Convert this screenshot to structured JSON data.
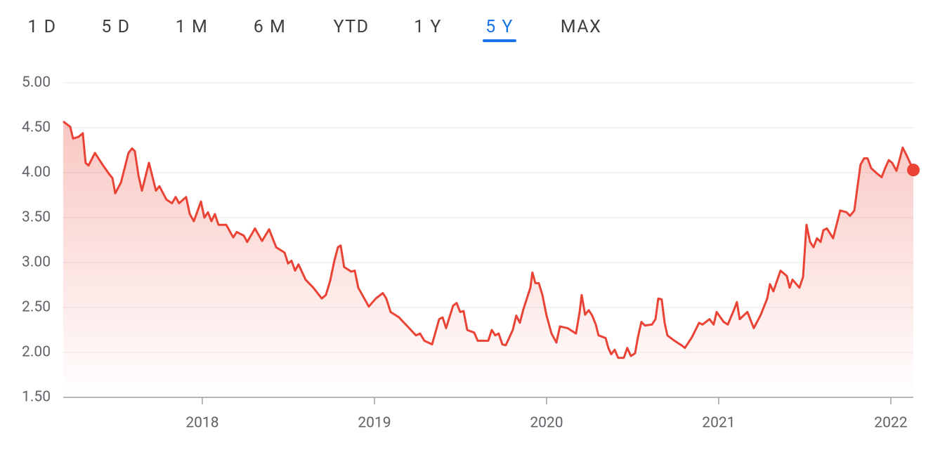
{
  "tabs": [
    "1 D",
    "5 D",
    "1 M",
    "6 M",
    "YTD",
    "1 Y",
    "5 Y",
    "MAX"
  ],
  "selected_tab": 6,
  "chart_data": {
    "type": "line",
    "color": "#ea4335",
    "grid": true,
    "ylim": [
      1.5,
      5.0
    ],
    "yticks": [
      {
        "value": 1.5,
        "label": "1.50"
      },
      {
        "value": 2,
        "label": "2.00"
      },
      {
        "value": 2.5,
        "label": "2.50"
      },
      {
        "value": 3,
        "label": "3.00"
      },
      {
        "value": 3.5,
        "label": "3.50"
      },
      {
        "value": 4,
        "label": "4.00"
      },
      {
        "value": 4.5,
        "label": "4.50"
      },
      {
        "value": 5,
        "label": "5.00"
      }
    ],
    "xlim": [
      2017.192,
      2022.131
    ],
    "xticks": [
      2018,
      2019,
      2020,
      2021,
      2022
    ],
    "x": [
      2017.192,
      2017.233,
      2017.249,
      2017.282,
      2017.306,
      2017.322,
      2017.339,
      2017.376,
      2017.42,
      2017.461,
      2017.478,
      2017.494,
      2017.527,
      2017.571,
      2017.592,
      2017.608,
      2017.629,
      2017.649,
      2017.69,
      2017.731,
      2017.751,
      2017.792,
      2017.824,
      2017.845,
      2017.865,
      2017.906,
      2017.927,
      2017.951,
      2017.992,
      2018.012,
      2018.033,
      2018.053,
      2018.073,
      2018.094,
      2018.139,
      2018.18,
      2018.2,
      2018.241,
      2018.261,
      2018.306,
      2018.347,
      2018.388,
      2018.429,
      2018.478,
      2018.498,
      2018.518,
      2018.539,
      2018.559,
      2018.6,
      2018.645,
      2018.694,
      2018.718,
      2018.743,
      2018.767,
      2018.788,
      2018.804,
      2018.824,
      2018.865,
      2018.886,
      2018.906,
      2018.947,
      2018.967,
      2019.008,
      2019.049,
      2019.069,
      2019.094,
      2019.143,
      2019.167,
      2019.192,
      2019.241,
      2019.265,
      2019.29,
      2019.335,
      2019.376,
      2019.396,
      2019.416,
      2019.457,
      2019.478,
      2019.498,
      2019.518,
      2019.539,
      2019.58,
      2019.6,
      2019.661,
      2019.682,
      2019.702,
      2019.722,
      2019.743,
      2019.763,
      2019.804,
      2019.824,
      2019.845,
      2019.865,
      2019.906,
      2019.918,
      2019.935,
      2019.955,
      2019.976,
      2020.0,
      2020.029,
      2020.057,
      2020.078,
      2020.122,
      2020.171,
      2020.192,
      2020.204,
      2020.224,
      2020.245,
      2020.265,
      2020.286,
      2020.302,
      2020.343,
      2020.359,
      2020.376,
      2020.396,
      2020.416,
      2020.449,
      2020.469,
      2020.49,
      2020.514,
      2020.531,
      2020.551,
      2020.571,
      2020.612,
      2020.633,
      2020.649,
      2020.669,
      2020.686,
      2020.702,
      2020.743,
      2020.784,
      2020.804,
      2020.845,
      2020.886,
      2020.906,
      2020.947,
      2020.971,
      2020.988,
      2021.029,
      2021.053,
      2021.09,
      2021.106,
      2021.122,
      2021.167,
      2021.204,
      2021.245,
      2021.282,
      2021.298,
      2021.318,
      2021.359,
      2021.396,
      2021.412,
      2021.429,
      2021.469,
      2021.49,
      2021.51,
      2021.531,
      2021.551,
      2021.571,
      2021.592,
      2021.608,
      2021.629,
      2021.665,
      2021.706,
      2021.743,
      2021.763,
      2021.788,
      2021.804,
      2021.824,
      2021.845,
      2021.865,
      2021.886,
      2021.927,
      2021.947,
      2021.967,
      2021.988,
      2022.008,
      2022.033,
      2022.053,
      2022.069,
      2022.09,
      2022.131
    ],
    "values": [
      4.57,
      4.51,
      4.38,
      4.4,
      4.44,
      4.11,
      4.08,
      4.22,
      4.09,
      3.98,
      3.94,
      3.77,
      3.89,
      4.22,
      4.27,
      4.24,
      3.97,
      3.8,
      4.11,
      3.8,
      3.85,
      3.7,
      3.66,
      3.73,
      3.66,
      3.73,
      3.54,
      3.46,
      3.68,
      3.5,
      3.56,
      3.46,
      3.54,
      3.42,
      3.42,
      3.28,
      3.34,
      3.3,
      3.23,
      3.38,
      3.24,
      3.37,
      3.17,
      3.11,
      2.99,
      3.02,
      2.91,
      2.98,
      2.81,
      2.72,
      2.6,
      2.64,
      2.8,
      3.02,
      3.17,
      3.19,
      2.95,
      2.9,
      2.91,
      2.72,
      2.58,
      2.51,
      2.6,
      2.66,
      2.6,
      2.45,
      2.39,
      2.34,
      2.29,
      2.19,
      2.21,
      2.13,
      2.09,
      2.37,
      2.39,
      2.27,
      2.52,
      2.55,
      2.45,
      2.46,
      2.25,
      2.22,
      2.13,
      2.13,
      2.25,
      2.19,
      2.21,
      2.09,
      2.08,
      2.25,
      2.41,
      2.33,
      2.48,
      2.72,
      2.89,
      2.77,
      2.77,
      2.64,
      2.41,
      2.21,
      2.11,
      2.29,
      2.27,
      2.21,
      2.45,
      2.64,
      2.42,
      2.47,
      2.41,
      2.31,
      2.19,
      2.16,
      2.05,
      1.98,
      2.03,
      1.94,
      1.94,
      2.05,
      1.96,
      1.99,
      2.17,
      2.34,
      2.3,
      2.31,
      2.37,
      2.6,
      2.59,
      2.33,
      2.19,
      2.13,
      2.08,
      2.05,
      2.17,
      2.33,
      2.31,
      2.37,
      2.31,
      2.45,
      2.34,
      2.31,
      2.48,
      2.56,
      2.37,
      2.45,
      2.27,
      2.42,
      2.6,
      2.76,
      2.68,
      2.91,
      2.85,
      2.72,
      2.81,
      2.72,
      2.84,
      3.42,
      3.23,
      3.17,
      3.27,
      3.23,
      3.36,
      3.38,
      3.27,
      3.58,
      3.56,
      3.52,
      3.58,
      3.81,
      4.09,
      4.16,
      4.16,
      4.05,
      3.98,
      3.95,
      4.05,
      4.14,
      4.11,
      4.02,
      4.16,
      4.28,
      4.2,
      4.03
    ]
  }
}
